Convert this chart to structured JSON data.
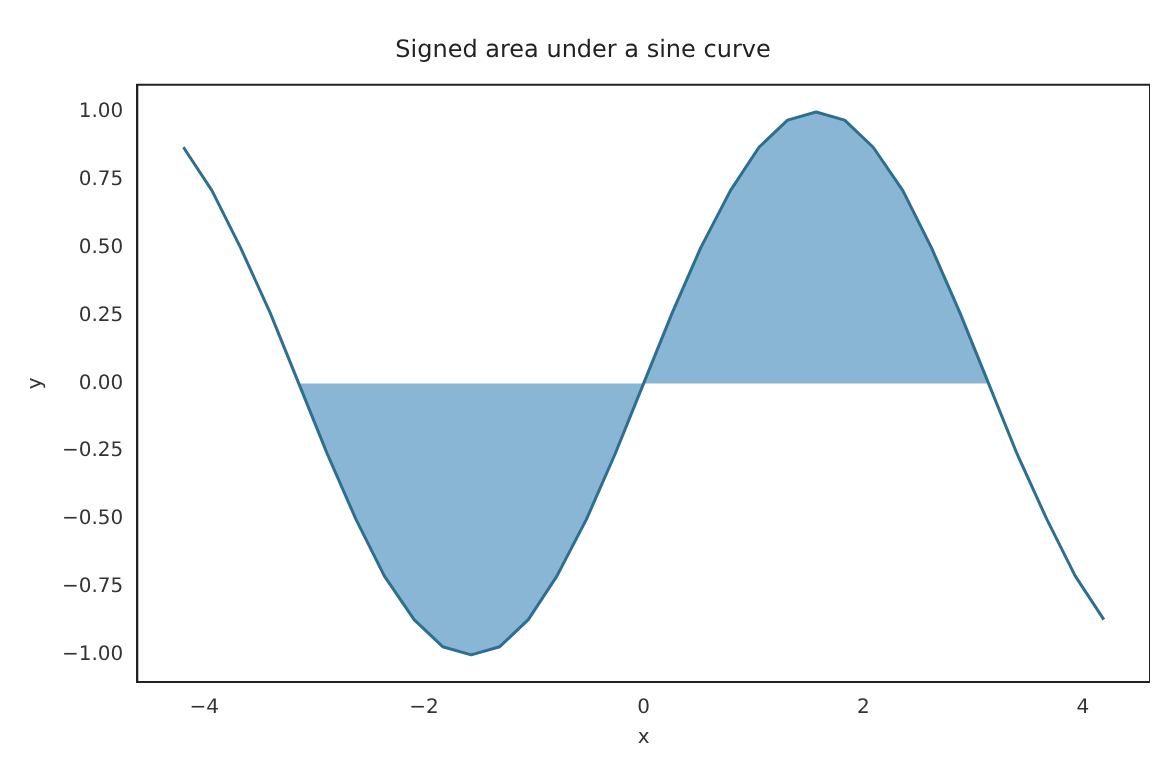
{
  "chart_data": {
    "type": "line",
    "title": "Signed area under a sine curve",
    "xlabel": "x",
    "ylabel": "y",
    "xlim": [
      -4.61,
      4.61
    ],
    "ylim": [
      -1.1,
      1.1
    ],
    "xticks": [
      {
        "value": -4,
        "label": "−4"
      },
      {
        "value": -2,
        "label": "−2"
      },
      0,
      2,
      4
    ],
    "yticks": [
      {
        "value": -1,
        "label": "−1.00"
      },
      {
        "value": -0.75,
        "label": "−0.75"
      },
      {
        "value": -0.5,
        "label": "−0.50"
      },
      {
        "value": -0.25,
        "label": "−0.25"
      },
      {
        "value": 0,
        "label": "0.00"
      },
      {
        "value": 0.25,
        "label": "0.25"
      },
      {
        "value": 0.5,
        "label": "0.50"
      },
      {
        "value": 0.75,
        "label": "0.75"
      },
      {
        "value": 1,
        "label": "1.00"
      }
    ],
    "series": [
      {
        "type": "area",
        "color": "#8ab6d6",
        "x": [
          -3.14,
          -2.88,
          -2.62,
          -2.36,
          -2.09,
          -1.83,
          -1.57,
          -1.31,
          -1.05,
          -0.79,
          -0.52,
          -0.26,
          0,
          0.26,
          0.52,
          0.79,
          1.05,
          1.31,
          1.57,
          1.83,
          2.09,
          2.36,
          2.62,
          2.88,
          3.14
        ],
        "values": [
          0,
          -0.26,
          -0.5,
          -0.71,
          -0.87,
          -0.97,
          -1,
          -0.97,
          -0.87,
          -0.71,
          -0.5,
          -0.26,
          0,
          0.26,
          0.5,
          0.71,
          0.87,
          0.97,
          1,
          0.97,
          0.87,
          0.71,
          0.5,
          0.26,
          0
        ]
      },
      {
        "color": "#2e6e8e",
        "x": [
          -4.19,
          -3.93,
          -3.67,
          -3.4,
          -3.14,
          -2.88,
          -2.62,
          -2.36,
          -2.09,
          -1.83,
          -1.57,
          -1.31,
          -1.05,
          -0.79,
          -0.52,
          -0.26,
          0,
          0.26,
          0.52,
          0.79,
          1.05,
          1.31,
          1.57,
          1.83,
          2.09,
          2.36,
          2.62,
          2.88,
          3.14,
          3.4,
          3.67,
          3.93,
          4.19
        ],
        "values": [
          0.87,
          0.71,
          0.5,
          0.26,
          0,
          -0.26,
          -0.5,
          -0.71,
          -0.87,
          -0.97,
          -1,
          -0.97,
          -0.87,
          -0.71,
          -0.5,
          -0.26,
          0,
          0.26,
          0.5,
          0.71,
          0.87,
          0.97,
          1,
          0.97,
          0.87,
          0.71,
          0.5,
          0.26,
          0,
          -0.26,
          -0.5,
          -0.71,
          -0.87
        ]
      }
    ]
  }
}
